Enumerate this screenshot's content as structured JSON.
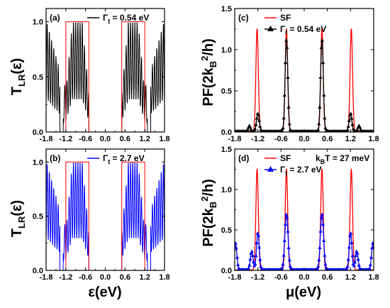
{
  "chart_data": [
    {
      "panel": "(a)",
      "type": "line",
      "legend": [
        {
          "name": "Γt = 0.54 eV",
          "color": "#000000"
        }
      ],
      "ylabel": "T_LR(ε)",
      "xlabel": "",
      "xlim": [
        -1.8,
        1.8
      ],
      "ylim": [
        0,
        1.12
      ],
      "xticks": [
        "-1.8",
        "-1.2",
        "-0.6",
        "0.0",
        "0.6",
        "1.2",
        "1.8"
      ],
      "yticks": [
        "0.0",
        "0.5",
        "1.0"
      ],
      "bands": [
        [
          -1.2,
          -0.5
        ],
        [
          0.5,
          1.2
        ]
      ],
      "series": [
        {
          "name": "Γt = 0.54 eV",
          "color": "#000000",
          "style": "dense-oscillation",
          "gap": [
            -0.5,
            0.5
          ],
          "edge_gaps": [
            [
              -1.38,
              -1.28
            ],
            [
              1.28,
              1.38
            ]
          ]
        }
      ]
    },
    {
      "panel": "(b)",
      "type": "line",
      "legend": [
        {
          "name": "Γt = 2.7 eV",
          "color": "#0000ff"
        }
      ],
      "ylabel": "T_LR(ε)",
      "xlabel": "ε(eV)",
      "xlim": [
        -1.8,
        1.8
      ],
      "ylim": [
        0,
        1.12
      ],
      "xticks": [
        "-1.8",
        "-1.2",
        "-0.6",
        "0.0",
        "0.6",
        "1.2",
        "1.8"
      ],
      "yticks": [
        "0.0",
        "0.5",
        "1.0"
      ],
      "bands": [
        [
          -1.2,
          -0.5
        ],
        [
          0.5,
          1.2
        ]
      ],
      "series": [
        {
          "name": "Γt = 2.7 eV",
          "color": "#0000ff",
          "style": "dense-oscillation",
          "gap": [
            -0.5,
            0.5
          ],
          "edge_gaps": [
            [
              -1.38,
              -1.28
            ],
            [
              1.28,
              1.38
            ]
          ]
        }
      ]
    },
    {
      "panel": "(c)",
      "type": "line",
      "legend": [
        {
          "name": "SF",
          "color": "#ff0000",
          "marker": "none"
        },
        {
          "name": "Γt = 0.54 eV",
          "color": "#000000",
          "marker": "triangle"
        }
      ],
      "ylabel": "PF(2kB²/h)",
      "xlabel": "",
      "xlim": [
        -1.8,
        1.8
      ],
      "ylim": [
        0,
        1.5
      ],
      "xticks": [
        "-1.8",
        "-1.2",
        "-0.6",
        "0.0",
        "0.6",
        "1.2",
        "1.8"
      ],
      "yticks": [
        "0.0",
        "0.5",
        "1.0",
        "1.5"
      ],
      "series": [
        {
          "name": "SF",
          "color": "#ff0000",
          "peaks": [
            {
              "x": -1.22,
              "y": 1.25,
              "w": 0.045
            },
            {
              "x": -0.46,
              "y": 1.25,
              "w": 0.045
            },
            {
              "x": 0.46,
              "y": 1.25,
              "w": 0.045
            },
            {
              "x": 1.22,
              "y": 1.25,
              "w": 0.045
            }
          ]
        },
        {
          "name": "Γt = 0.54 eV",
          "color": "#000000",
          "peaks": [
            {
              "x": -1.42,
              "y": 0.07,
              "w": 0.04
            },
            {
              "x": -1.2,
              "y": 0.22,
              "w": 0.05
            },
            {
              "x": -0.46,
              "y": 1.12,
              "w": 0.05
            },
            {
              "x": 0.46,
              "y": 1.12,
              "w": 0.05
            },
            {
              "x": 1.2,
              "y": 0.22,
              "w": 0.05
            },
            {
              "x": 1.42,
              "y": 0.07,
              "w": 0.04
            }
          ]
        }
      ]
    },
    {
      "panel": "(d)",
      "type": "line",
      "legend": [
        {
          "name": "SF",
          "color": "#ff0000",
          "marker": "none"
        },
        {
          "name": "Γt = 2.7 eV",
          "color": "#0000ff",
          "marker": "triangle"
        }
      ],
      "annotation": "kBT = 27 meV",
      "ylabel": "PF(2kB²/h)",
      "xlabel": "μ(eV)",
      "xlim": [
        -1.8,
        1.8
      ],
      "ylim": [
        0,
        1.5
      ],
      "xticks": [
        "-1.8",
        "-1.2",
        "-0.6",
        "0.0",
        "0.6",
        "1.2",
        "1.8"
      ],
      "yticks": [
        "0.0",
        "0.5",
        "1.0",
        "1.5"
      ],
      "series": [
        {
          "name": "SF",
          "color": "#ff0000",
          "peaks": [
            {
              "x": -1.22,
              "y": 1.25,
              "w": 0.045
            },
            {
              "x": -0.46,
              "y": 1.25,
              "w": 0.045
            },
            {
              "x": 0.46,
              "y": 1.25,
              "w": 0.045
            },
            {
              "x": 1.22,
              "y": 1.25,
              "w": 0.045
            }
          ]
        },
        {
          "name": "Γt = 2.7 eV",
          "color": "#0000ff",
          "peaks": [
            {
              "x": -1.78,
              "y": 0.33,
              "w": 0.05
            },
            {
              "x": -1.36,
              "y": 0.23,
              "w": 0.05
            },
            {
              "x": -1.2,
              "y": 0.46,
              "w": 0.05
            },
            {
              "x": -0.46,
              "y": 0.69,
              "w": 0.06
            },
            {
              "x": 0.46,
              "y": 0.69,
              "w": 0.06
            },
            {
              "x": 1.2,
              "y": 0.46,
              "w": 0.05
            },
            {
              "x": 1.36,
              "y": 0.23,
              "w": 0.05
            },
            {
              "x": 1.78,
              "y": 0.33,
              "w": 0.05
            }
          ]
        }
      ]
    }
  ]
}
